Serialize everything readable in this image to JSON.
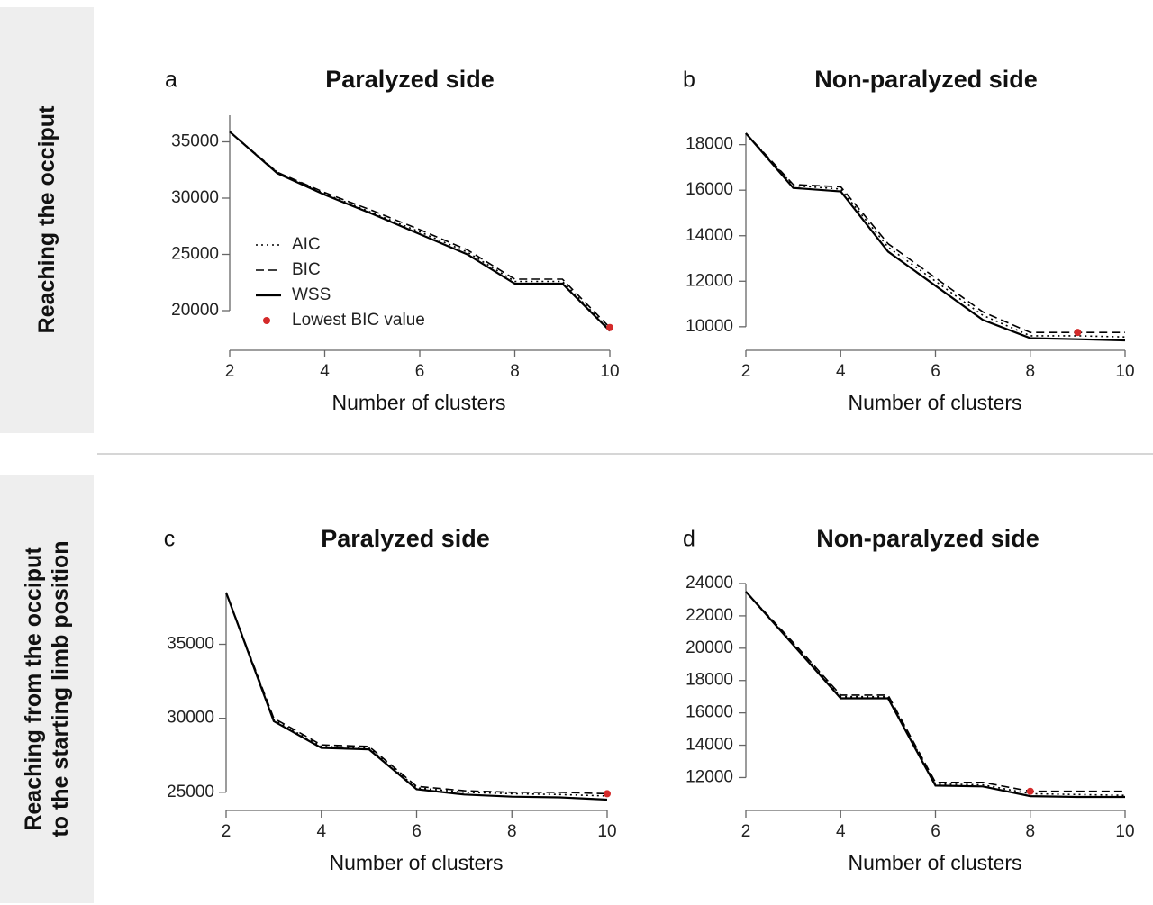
{
  "rows": [
    {
      "label": "Reaching the occiput"
    },
    {
      "label_line1": "Reaching from the occiput",
      "label_line2": "to the starting limb position"
    }
  ],
  "legend": {
    "entries": [
      {
        "label": "AIC",
        "style": "dotted"
      },
      {
        "label": "BIC",
        "style": "dashed"
      },
      {
        "label": "WSS",
        "style": "solid"
      },
      {
        "label": "Lowest BIC value",
        "style": "marker"
      }
    ]
  },
  "colors": {
    "line": "#000000",
    "marker": "#d42a2a",
    "row_band": "#eeeeee"
  },
  "chart_data": [
    {
      "panel": "a",
      "type": "line",
      "title": "Paralyzed side",
      "xlabel": "Number of clusters",
      "ylabel": "",
      "x": [
        2,
        3,
        4,
        5,
        6,
        7,
        8,
        9,
        10
      ],
      "xticks": [
        2,
        4,
        6,
        8,
        10
      ],
      "xlim": [
        2,
        10
      ],
      "yticks": [
        20000,
        25000,
        30000,
        35000
      ],
      "ylim": [
        18000,
        36000
      ],
      "series": [
        {
          "name": "AIC",
          "style": "dotted",
          "values": [
            35900,
            32300,
            30400,
            28700,
            27000,
            25200,
            22600,
            22600,
            18300
          ]
        },
        {
          "name": "BIC",
          "style": "dashed",
          "values": [
            35900,
            32300,
            30500,
            28900,
            27200,
            25400,
            22800,
            22800,
            18500
          ]
        },
        {
          "name": "WSS",
          "style": "solid",
          "values": [
            35900,
            32200,
            30300,
            28600,
            26800,
            25000,
            22400,
            22400,
            18200
          ]
        }
      ],
      "lowest_bic": {
        "x": 10,
        "y": 18500
      }
    },
    {
      "panel": "b",
      "type": "line",
      "title": "Non-paralyzed side",
      "xlabel": "Number of clusters",
      "ylabel": "",
      "x": [
        2,
        3,
        4,
        5,
        6,
        7,
        8,
        9,
        10
      ],
      "xticks": [
        2,
        4,
        6,
        8,
        10
      ],
      "xlim": [
        2,
        10
      ],
      "yticks": [
        10000,
        12000,
        14000,
        16000,
        18000
      ],
      "ylim": [
        9400,
        18500
      ],
      "series": [
        {
          "name": "AIC",
          "style": "dotted",
          "values": [
            18500,
            16200,
            16050,
            13500,
            12000,
            10500,
            9600,
            9600,
            9550
          ]
        },
        {
          "name": "BIC",
          "style": "dashed",
          "values": [
            18500,
            16250,
            16150,
            13650,
            12150,
            10650,
            9750,
            9750,
            9750
          ]
        },
        {
          "name": "WSS",
          "style": "solid",
          "values": [
            18500,
            16100,
            15950,
            13300,
            11800,
            10300,
            9500,
            9450,
            9400
          ]
        }
      ],
      "lowest_bic": {
        "x": 9,
        "y": 9750
      }
    },
    {
      "panel": "c",
      "type": "line",
      "title": "Paralyzed side",
      "xlabel": "Number of clusters",
      "ylabel": "",
      "x": [
        2,
        3,
        4,
        5,
        6,
        7,
        8,
        9,
        10
      ],
      "xticks": [
        2,
        4,
        6,
        8,
        10
      ],
      "xlim": [
        2,
        10
      ],
      "yticks": [
        25000,
        30000,
        35000
      ],
      "ylim": [
        24500,
        38500
      ],
      "series": [
        {
          "name": "AIC",
          "style": "dotted",
          "values": [
            38500,
            29900,
            28100,
            28000,
            25300,
            25000,
            24900,
            24850,
            24750
          ]
        },
        {
          "name": "BIC",
          "style": "dashed",
          "values": [
            38500,
            30000,
            28200,
            28100,
            25400,
            25100,
            25000,
            25000,
            24900
          ]
        },
        {
          "name": "WSS",
          "style": "solid",
          "values": [
            38500,
            29800,
            28000,
            27900,
            25200,
            24850,
            24700,
            24650,
            24500
          ]
        }
      ],
      "lowest_bic": {
        "x": 10,
        "y": 24900
      }
    },
    {
      "panel": "d",
      "type": "line",
      "title": "Non-paralyzed side",
      "xlabel": "Number of clusters",
      "ylabel": "",
      "x": [
        2,
        3,
        4,
        5,
        6,
        7,
        8,
        9,
        10
      ],
      "xticks": [
        2,
        4,
        6,
        8,
        10
      ],
      "xlim": [
        2,
        10
      ],
      "yticks": [
        12000,
        14000,
        16000,
        18000,
        20000,
        22000,
        24000
      ],
      "ylim": [
        10800,
        24000
      ],
      "series": [
        {
          "name": "AIC",
          "style": "dotted",
          "values": [
            23500,
            20300,
            17000,
            17000,
            11600,
            11550,
            11000,
            10950,
            10900
          ]
        },
        {
          "name": "BIC",
          "style": "dashed",
          "values": [
            23500,
            20350,
            17100,
            17100,
            11700,
            11700,
            11150,
            11150,
            11150
          ]
        },
        {
          "name": "WSS",
          "style": "solid",
          "values": [
            23500,
            20200,
            16900,
            16900,
            11500,
            11450,
            10850,
            10800,
            10800
          ]
        }
      ],
      "lowest_bic": {
        "x": 8,
        "y": 11150
      }
    }
  ]
}
